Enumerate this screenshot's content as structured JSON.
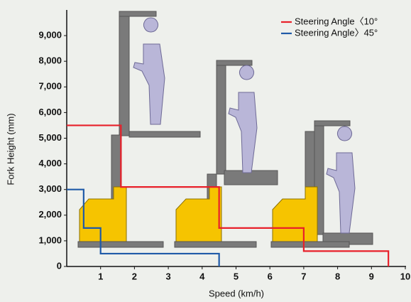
{
  "chart_data": {
    "type": "line",
    "xlabel": "Speed (km/h)",
    "ylabel": "Fork Height (mm)",
    "xlim": [
      0,
      10
    ],
    "xticks": [
      1,
      2,
      3,
      4,
      5,
      6,
      7,
      8,
      9,
      10
    ],
    "ylim": [
      0,
      10000
    ],
    "yticks": [
      0,
      {
        "value": 1000,
        "label": "1,000"
      },
      {
        "value": 2000,
        "label": "2,000"
      },
      {
        "value": 3000,
        "label": "3,000"
      },
      {
        "value": 4000,
        "label": "4,000"
      },
      {
        "value": 5000,
        "label": "5,000"
      },
      {
        "value": 6000,
        "label": "6,000"
      },
      {
        "value": 7000,
        "label": "7,000"
      },
      {
        "value": 8000,
        "label": "8,000"
      },
      {
        "value": 9000,
        "label": "9,000"
      }
    ],
    "grid": false,
    "series": [
      {
        "name": "Steering Angle〈10°",
        "color": "#e8202a",
        "x": [
          0,
          1.6,
          1.6,
          4.5,
          4.5,
          7,
          7,
          9.5,
          9.5
        ],
        "values": [
          5500,
          5500,
          3100,
          3100,
          1500,
          1500,
          600,
          600,
          0
        ]
      },
      {
        "name": "Steering Angle〉45°",
        "color": "#1f5aa8",
        "x": [
          0,
          0.5,
          0.5,
          1,
          1,
          4.5,
          4.5
        ],
        "values": [
          3000,
          3000,
          1500,
          1500,
          500,
          500,
          0
        ]
      }
    ]
  }
}
